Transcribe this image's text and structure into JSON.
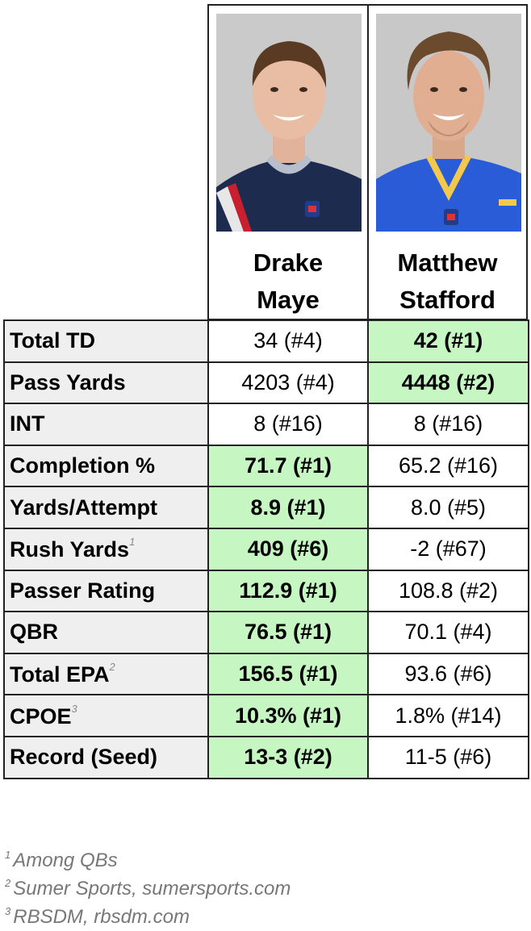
{
  "players": [
    {
      "first": "Drake",
      "last": "Maye",
      "photo_icon": "player-headshot-icon",
      "jersey": "#1d2b4f",
      "bg": "#c9c9c9"
    },
    {
      "first": "Matthew",
      "last": "Stafford",
      "photo_icon": "player-headshot-icon",
      "jersey": "#2a5cd8",
      "bg": "#c6c6c6"
    }
  ],
  "rows": [
    {
      "label": "Total TD",
      "fn": "",
      "p1": "34 (#4)",
      "p2": "42 (#1)",
      "best": 2
    },
    {
      "label": "Pass Yards",
      "fn": "",
      "p1": "4203 (#4)",
      "p2": "4448 (#2)",
      "best": 2
    },
    {
      "label": "INT",
      "fn": "",
      "p1": "8 (#16)",
      "p2": "8 (#16)",
      "best": 0
    },
    {
      "label": "Completion %",
      "fn": "",
      "p1": "71.7 (#1)",
      "p2": "65.2 (#16)",
      "best": 1
    },
    {
      "label": "Yards/Attempt",
      "fn": "",
      "p1": "8.9 (#1)",
      "p2": "8.0 (#5)",
      "best": 1
    },
    {
      "label": "Rush Yards",
      "fn": "1",
      "p1": "409 (#6)",
      "p2": "-2 (#67)",
      "best": 1
    },
    {
      "label": "Passer Rating",
      "fn": "",
      "p1": "112.9 (#1)",
      "p2": "108.8 (#2)",
      "best": 1
    },
    {
      "label": "QBR",
      "fn": "",
      "p1": "76.5 (#1)",
      "p2": "70.1 (#4)",
      "best": 1
    },
    {
      "label": "Total EPA",
      "fn": "2",
      "p1": "156.5 (#1)",
      "p2": "93.6 (#6)",
      "best": 1
    },
    {
      "label": "CPOE",
      "fn": "3",
      "p1": "10.3% (#1)",
      "p2": "1.8% (#14)",
      "best": 1
    },
    {
      "label": "Record (Seed)",
      "fn": "",
      "p1": "13-3 (#2)",
      "p2": "11-5 (#6)",
      "best": 1
    }
  ],
  "footnotes": [
    {
      "num": "1",
      "text": "Among QBs"
    },
    {
      "num": "2",
      "text": "Sumer Sports, sumersports.com"
    },
    {
      "num": "3",
      "text": "RBSDM, rbsdm.com"
    }
  ],
  "colors": {
    "highlight": "#c6f6c2",
    "label_bg": "#efefef",
    "border": "#222222"
  }
}
